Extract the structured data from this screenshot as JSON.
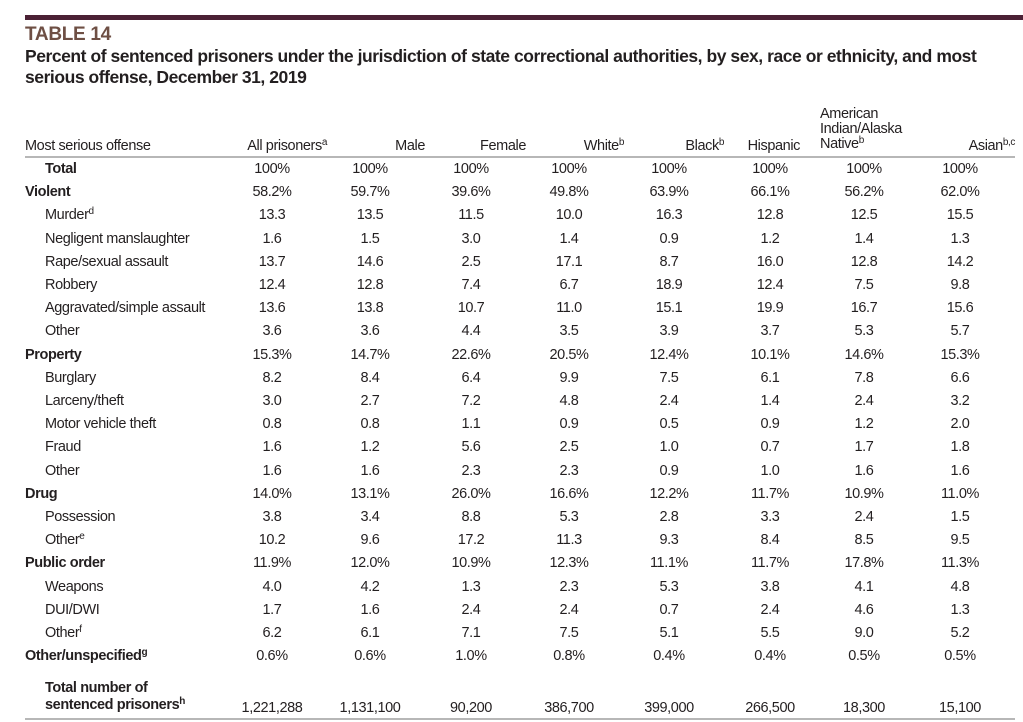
{
  "table_number": "TABLE 14",
  "title": "Percent of sentenced prisoners under the jurisdiction of state correctional authorities, by sex, race or ethnicity, and most serious offense, December 31, 2019",
  "columns": [
    {
      "label": "Most serious offense",
      "note": ""
    },
    {
      "label": "All prisoners",
      "note": "a"
    },
    {
      "label": "Male",
      "note": ""
    },
    {
      "label": "Female",
      "note": ""
    },
    {
      "label": "White",
      "note": "b"
    },
    {
      "label": "Black",
      "note": "b"
    },
    {
      "label": "Hispanic",
      "note": ""
    },
    {
      "label": "American Indian/Alaska Native",
      "note": "b"
    },
    {
      "label": "Asian",
      "note": "b,c"
    }
  ],
  "rows": [
    {
      "label": "Total",
      "note": "",
      "bold": true,
      "indent": true,
      "values": [
        "100%",
        "100%",
        "100%",
        "100%",
        "100%",
        "100%",
        "100%",
        "100%"
      ]
    },
    {
      "label": "Violent",
      "note": "",
      "bold": true,
      "values": [
        "58.2%",
        "59.7%",
        "39.6%",
        "49.8%",
        "63.9%",
        "66.1%",
        "56.2%",
        "62.0%"
      ]
    },
    {
      "label": "Murder",
      "note": "d",
      "values": [
        "13.3",
        "13.5",
        "11.5",
        "10.0",
        "16.3",
        "12.8",
        "12.5",
        "15.5"
      ]
    },
    {
      "label": "Negligent manslaughter",
      "note": "",
      "values": [
        "1.6",
        "1.5",
        "3.0",
        "1.4",
        "0.9",
        "1.2",
        "1.4",
        "1.3"
      ]
    },
    {
      "label": "Rape/sexual assault",
      "note": "",
      "values": [
        "13.7",
        "14.6",
        "2.5",
        "17.1",
        "8.7",
        "16.0",
        "12.8",
        "14.2"
      ]
    },
    {
      "label": "Robbery",
      "note": "",
      "values": [
        "12.4",
        "12.8",
        "7.4",
        "6.7",
        "18.9",
        "12.4",
        "7.5",
        "9.8"
      ]
    },
    {
      "label": "Aggravated/simple assault",
      "note": "",
      "values": [
        "13.6",
        "13.8",
        "10.7",
        "11.0",
        "15.1",
        "19.9",
        "16.7",
        "15.6"
      ]
    },
    {
      "label": "Other",
      "note": "",
      "values": [
        "3.6",
        "3.6",
        "4.4",
        "3.5",
        "3.9",
        "3.7",
        "5.3",
        "5.7"
      ]
    },
    {
      "label": "Property",
      "note": "",
      "bold": true,
      "values": [
        "15.3%",
        "14.7%",
        "22.6%",
        "20.5%",
        "12.4%",
        "10.1%",
        "14.6%",
        "15.3%"
      ]
    },
    {
      "label": "Burglary",
      "note": "",
      "values": [
        "8.2",
        "8.4",
        "6.4",
        "9.9",
        "7.5",
        "6.1",
        "7.8",
        "6.6"
      ]
    },
    {
      "label": "Larceny/theft",
      "note": "",
      "values": [
        "3.0",
        "2.7",
        "7.2",
        "4.8",
        "2.4",
        "1.4",
        "2.4",
        "3.2"
      ]
    },
    {
      "label": "Motor vehicle theft",
      "note": "",
      "values": [
        "0.8",
        "0.8",
        "1.1",
        "0.9",
        "0.5",
        "0.9",
        "1.2",
        "2.0"
      ]
    },
    {
      "label": "Fraud",
      "note": "",
      "values": [
        "1.6",
        "1.2",
        "5.6",
        "2.5",
        "1.0",
        "0.7",
        "1.7",
        "1.8"
      ]
    },
    {
      "label": "Other",
      "note": "",
      "values": [
        "1.6",
        "1.6",
        "2.3",
        "2.3",
        "0.9",
        "1.0",
        "1.6",
        "1.6"
      ]
    },
    {
      "label": "Drug",
      "note": "",
      "bold": true,
      "values": [
        "14.0%",
        "13.1%",
        "26.0%",
        "16.6%",
        "12.2%",
        "11.7%",
        "10.9%",
        "11.0%"
      ]
    },
    {
      "label": "Possession",
      "note": "",
      "values": [
        "3.8",
        "3.4",
        "8.8",
        "5.3",
        "2.8",
        "3.3",
        "2.4",
        "1.5"
      ]
    },
    {
      "label": "Other",
      "note": "e",
      "values": [
        "10.2",
        "9.6",
        "17.2",
        "11.3",
        "9.3",
        "8.4",
        "8.5",
        "9.5"
      ]
    },
    {
      "label": "Public order",
      "note": "",
      "bold": true,
      "values": [
        "11.9%",
        "12.0%",
        "10.9%",
        "12.3%",
        "11.1%",
        "11.7%",
        "17.8%",
        "11.3%"
      ]
    },
    {
      "label": "Weapons",
      "note": "",
      "values": [
        "4.0",
        "4.2",
        "1.3",
        "2.3",
        "5.3",
        "3.8",
        "4.1",
        "4.8"
      ]
    },
    {
      "label": "DUI/DWI",
      "note": "",
      "values": [
        "1.7",
        "1.6",
        "2.4",
        "2.4",
        "0.7",
        "2.4",
        "4.6",
        "1.3"
      ]
    },
    {
      "label": "Other",
      "note": "f",
      "values": [
        "6.2",
        "6.1",
        "7.1",
        "7.5",
        "5.1",
        "5.5",
        "9.0",
        "5.2"
      ]
    },
    {
      "label": "Other/unspecified",
      "note": "g",
      "bold": true,
      "values": [
        "0.6%",
        "0.6%",
        "1.0%",
        "0.8%",
        "0.4%",
        "0.4%",
        "0.5%",
        "0.5%"
      ]
    }
  ],
  "total_row": {
    "label_line1": "Total number of",
    "label_line2": "sentenced prisoners",
    "note": "h",
    "values": [
      "1,221,288",
      "1,131,100",
      "90,200",
      "386,700",
      "399,000",
      "266,500",
      "18,300",
      "15,100"
    ]
  },
  "colors": {
    "top_bar": "#4b2135",
    "table_number": "#6e4f44",
    "rule": "#b7b7b7"
  }
}
